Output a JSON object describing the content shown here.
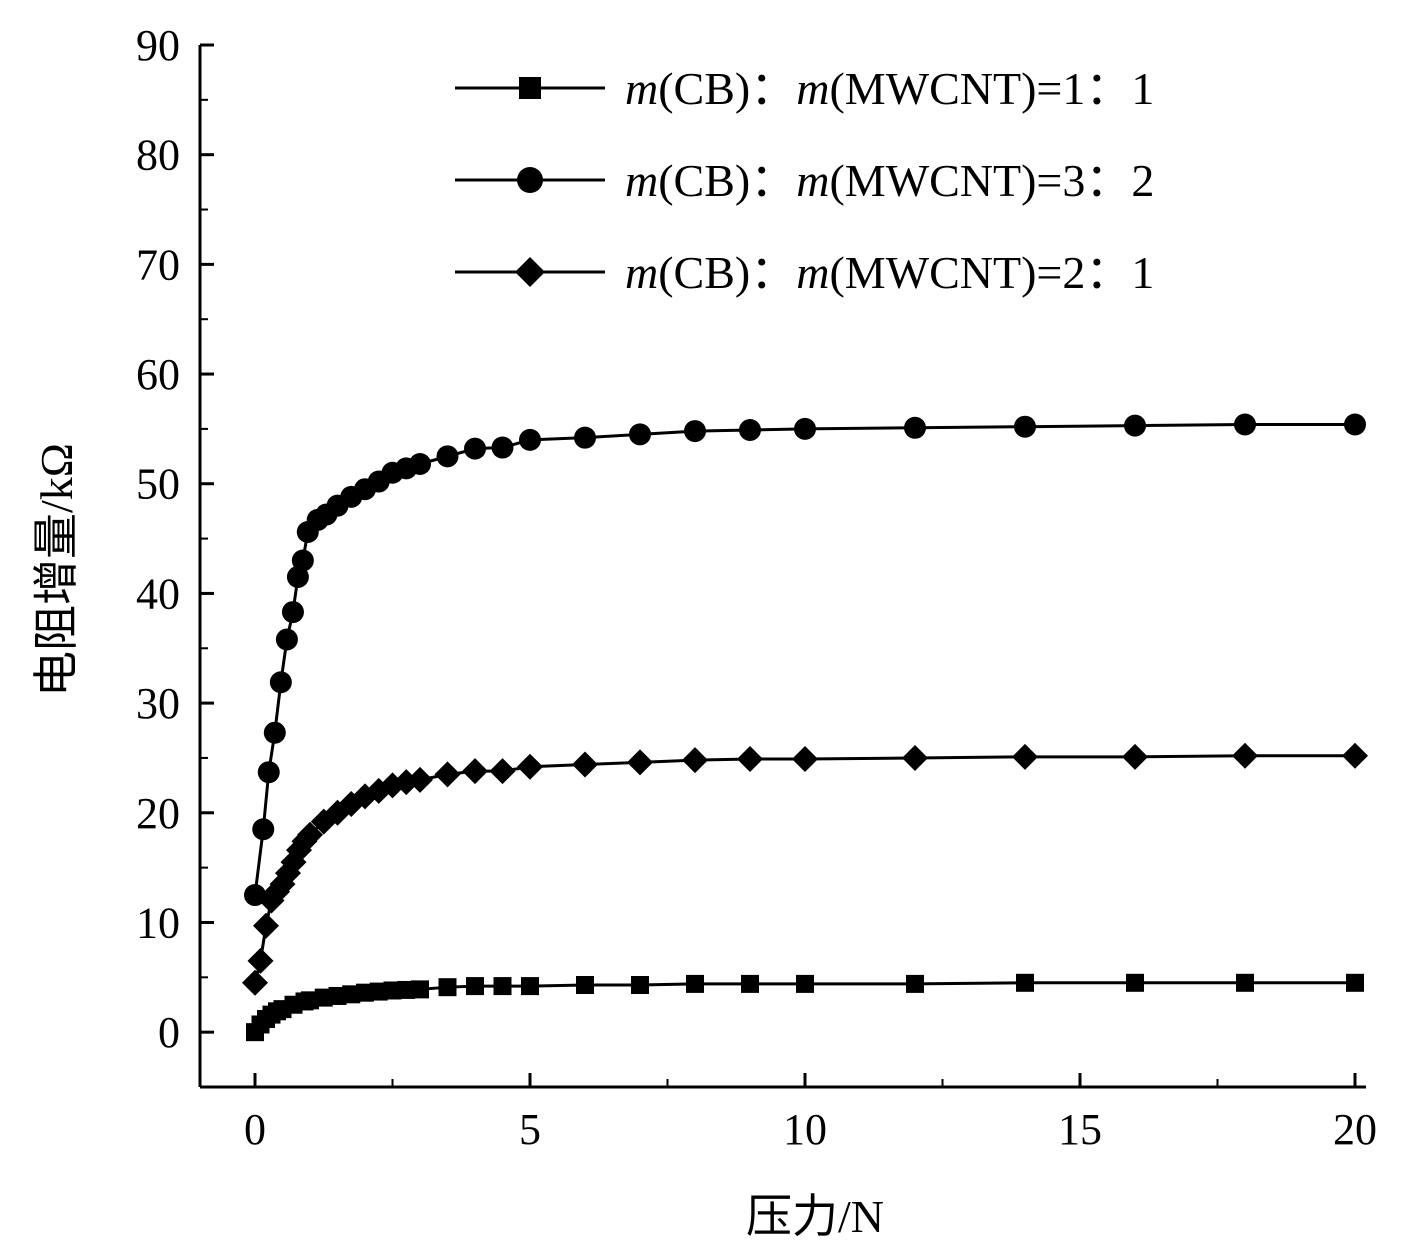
{
  "chart_data": {
    "type": "line",
    "title": "",
    "xlabel": "压力/N",
    "ylabel": "电阻增量/kΩ",
    "xlim": [
      -1,
      20.2
    ],
    "ylim": [
      -5,
      90
    ],
    "xticks": [
      0,
      5,
      10,
      15,
      20
    ],
    "xtick_labels": [
      "0",
      "5",
      "10",
      "15",
      "20"
    ],
    "yticks": [
      0,
      10,
      20,
      30,
      40,
      50,
      60,
      70,
      80,
      90
    ],
    "ytick_labels": [
      "0",
      "10",
      "20",
      "30",
      "40",
      "50",
      "60",
      "70",
      "80",
      "90"
    ],
    "grid": false,
    "legend_position": "top-right",
    "series": [
      {
        "name": "m(CB)：m(MWCNT)=1：1",
        "marker": "square",
        "x": [
          0,
          0.1,
          0.2,
          0.3,
          0.4,
          0.5,
          0.7,
          0.9,
          1.0,
          1.25,
          1.5,
          1.75,
          2.0,
          2.25,
          2.5,
          2.75,
          3.0,
          3.5,
          4,
          4.5,
          5,
          6,
          7,
          8,
          9,
          10,
          12,
          14,
          16,
          18,
          20
        ],
        "values": [
          0,
          0.7,
          1.2,
          1.6,
          1.9,
          2.1,
          2.5,
          2.8,
          2.9,
          3.15,
          3.3,
          3.45,
          3.6,
          3.7,
          3.8,
          3.85,
          3.9,
          4.1,
          4.2,
          4.2,
          4.2,
          4.3,
          4.3,
          4.4,
          4.4,
          4.4,
          4.4,
          4.5,
          4.5,
          4.5,
          4.5
        ]
      },
      {
        "name": "m(CB)：m(MWCNT)=3：2",
        "marker": "circle",
        "x": [
          0,
          0.15,
          0.25,
          0.36,
          0.47,
          0.58,
          0.69,
          0.78,
          0.87,
          0.96,
          1.14,
          1.3,
          1.5,
          1.75,
          2.0,
          2.25,
          2.5,
          2.75,
          3.0,
          3.5,
          4,
          4.5,
          5,
          6,
          7,
          8,
          9,
          10,
          12,
          14,
          16,
          18,
          20
        ],
        "values": [
          12.5,
          18.5,
          23.7,
          27.3,
          31.9,
          35.8,
          38.3,
          41.5,
          43.0,
          45.6,
          46.7,
          47.2,
          48.0,
          48.8,
          49.5,
          50.2,
          51.0,
          51.4,
          51.8,
          52.5,
          53.2,
          53.3,
          54.0,
          54.2,
          54.5,
          54.8,
          54.9,
          55.0,
          55.1,
          55.2,
          55.3,
          55.4,
          55.4
        ]
      },
      {
        "name": "m(CB)：m(MWCNT)=2：1",
        "marker": "diamond",
        "x": [
          0,
          0.1,
          0.2,
          0.3,
          0.4,
          0.5,
          0.6,
          0.7,
          0.8,
          0.9,
          1.0,
          1.25,
          1.5,
          1.75,
          2.0,
          2.25,
          2.5,
          2.75,
          3.0,
          3.5,
          4,
          4.5,
          5,
          6,
          7,
          8,
          9,
          10,
          12,
          14,
          16,
          18,
          20
        ],
        "values": [
          4.5,
          6.5,
          9.7,
          12.0,
          12.8,
          13.5,
          14.5,
          15.5,
          16.6,
          17.4,
          18.0,
          19.2,
          20.0,
          20.8,
          21.5,
          22.0,
          22.5,
          22.8,
          23.0,
          23.5,
          23.8,
          23.8,
          24.2,
          24.4,
          24.6,
          24.8,
          24.9,
          24.9,
          25.0,
          25.1,
          25.1,
          25.2,
          25.2
        ]
      }
    ]
  }
}
